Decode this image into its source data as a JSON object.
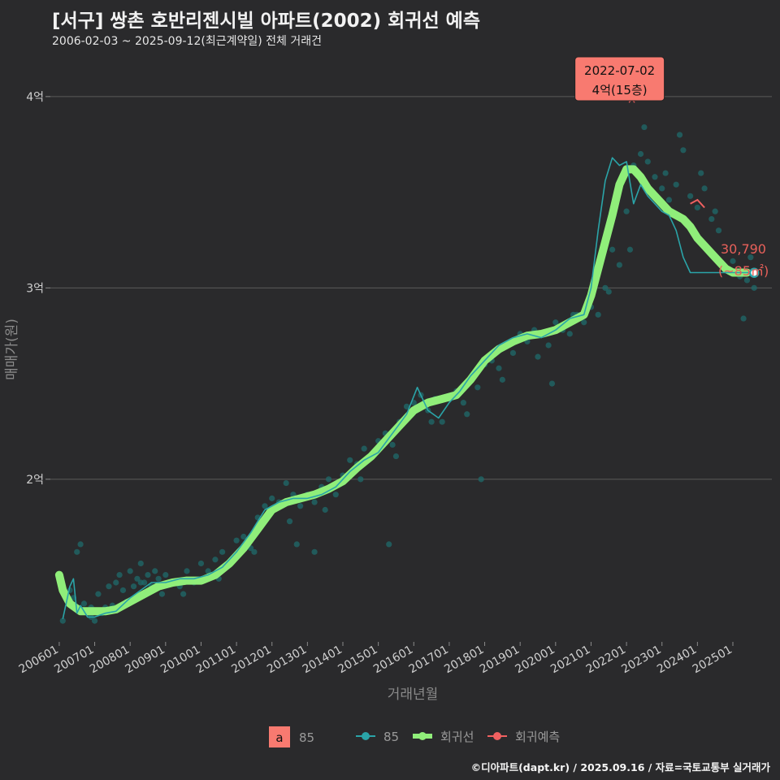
{
  "header": {
    "title": "[서구] 쌍촌 호반리젠시빌 아파트(2002) 회귀선 예측",
    "subtitle": "2006-02-03 ~ 2025-09-12(최근계약일) 전체 거래건"
  },
  "caption": "©디아파트(dapt.kr) / 2025.09.16 / 자료=국토교통부 실거래가",
  "colors": {
    "background": "#2a2a2c",
    "grid": "#5a5a5a",
    "scatter": "#1f6b6b",
    "series_line": "#2aa4a8",
    "regression": "#90ee7a",
    "forecast": "#f06060",
    "annotation_box": "#f87a70"
  },
  "chart_data": {
    "type": "scatter",
    "xlabel": "거래년월",
    "ylabel": "매매가(원)",
    "xlim": [
      2005.75,
      2026.1
    ],
    "ylim": [
      1.15,
      4.25
    ],
    "y_ticks": [
      {
        "value": 2,
        "label": "2억"
      },
      {
        "value": 3,
        "label": "3억"
      },
      {
        "value": 4,
        "label": "4억"
      }
    ],
    "x_ticks": [
      {
        "value": 2006.0,
        "label": "200601"
      },
      {
        "value": 2007.0,
        "label": "200701"
      },
      {
        "value": 2008.0,
        "label": "200801"
      },
      {
        "value": 2009.0,
        "label": "200901"
      },
      {
        "value": 2010.0,
        "label": "201001"
      },
      {
        "value": 2011.0,
        "label": "201101"
      },
      {
        "value": 2012.0,
        "label": "201201"
      },
      {
        "value": 2013.0,
        "label": "201301"
      },
      {
        "value": 2014.0,
        "label": "201401"
      },
      {
        "value": 2015.0,
        "label": "201501"
      },
      {
        "value": 2016.0,
        "label": "201601"
      },
      {
        "value": 2017.0,
        "label": "201701"
      },
      {
        "value": 2018.0,
        "label": "201801"
      },
      {
        "value": 2019.0,
        "label": "201901"
      },
      {
        "value": 2020.0,
        "label": "202001"
      },
      {
        "value": 2021.0,
        "label": "202101"
      },
      {
        "value": 2022.0,
        "label": "202201"
      },
      {
        "value": 2023.0,
        "label": "202301"
      },
      {
        "value": 2024.0,
        "label": "202401"
      },
      {
        "value": 2025.0,
        "label": "202501"
      }
    ],
    "series": [
      {
        "name": "85",
        "type": "scatter",
        "x": [
          2006.1,
          2006.3,
          2006.5,
          2006.6,
          2006.7,
          2006.8,
          2006.9,
          2007.0,
          2007.1,
          2007.2,
          2007.3,
          2007.4,
          2007.5,
          2007.6,
          2007.7,
          2007.8,
          2007.9,
          2008.0,
          2008.1,
          2008.2,
          2008.3,
          2008.4,
          2008.5,
          2008.6,
          2008.7,
          2008.8,
          2008.9,
          2009.0,
          2009.2,
          2009.4,
          2009.6,
          2009.8,
          2010.0,
          2010.2,
          2010.4,
          2010.6,
          2010.8,
          2011.0,
          2011.2,
          2011.4,
          2011.6,
          2011.8,
          2012.0,
          2012.2,
          2012.4,
          2012.6,
          2012.8,
          2013.0,
          2013.2,
          2013.4,
          2013.6,
          2013.8,
          2014.0,
          2014.2,
          2014.4,
          2014.6,
          2014.8,
          2015.0,
          2015.2,
          2015.4,
          2015.6,
          2015.8,
          2016.0,
          2016.2,
          2016.4,
          2016.6,
          2016.8,
          2017.0,
          2017.2,
          2017.4,
          2017.6,
          2017.8,
          2018.0,
          2018.2,
          2018.4,
          2018.6,
          2018.8,
          2019.0,
          2019.2,
          2019.4,
          2019.6,
          2019.8,
          2020.0,
          2020.2,
          2020.4,
          2020.6,
          2020.8,
          2021.0,
          2021.2,
          2021.4,
          2021.6,
          2021.8,
          2022.0,
          2022.2,
          2022.4,
          2022.6,
          2022.8,
          2023.0,
          2023.2,
          2023.4,
          2023.6,
          2023.8,
          2024.0,
          2024.2,
          2024.4,
          2024.6,
          2024.8,
          2025.0,
          2025.2,
          2025.4,
          2025.6,
          2006.4,
          2006.9,
          2007.3,
          2008.3,
          2009.5,
          2010.5,
          2011.5,
          2012.5,
          2013.5,
          2014.5,
          2015.5,
          2016.5,
          2017.5,
          2018.5,
          2019.5,
          2020.5,
          2021.5,
          2022.5,
          2023.5,
          2024.5,
          2025.5,
          2012.7,
          2013.2,
          2015.3,
          2017.9,
          2019.9,
          2022.1,
          2023.1,
          2024.1,
          2025.3
        ],
        "values": [
          1.26,
          1.42,
          1.62,
          1.66,
          1.35,
          1.3,
          1.33,
          1.26,
          1.4,
          1.3,
          1.33,
          1.44,
          1.34,
          1.46,
          1.5,
          1.42,
          1.36,
          1.52,
          1.44,
          1.48,
          1.56,
          1.46,
          1.5,
          1.44,
          1.52,
          1.48,
          1.4,
          1.5,
          1.46,
          1.44,
          1.52,
          1.46,
          1.56,
          1.52,
          1.58,
          1.62,
          1.56,
          1.68,
          1.7,
          1.64,
          1.8,
          1.86,
          1.9,
          1.88,
          1.98,
          1.92,
          1.86,
          1.92,
          1.88,
          1.96,
          2.0,
          1.92,
          2.02,
          2.1,
          2.08,
          2.16,
          2.12,
          2.2,
          2.24,
          2.18,
          2.3,
          2.38,
          2.4,
          2.44,
          2.36,
          2.42,
          2.3,
          2.42,
          2.46,
          2.4,
          2.52,
          2.48,
          2.6,
          2.62,
          2.58,
          2.7,
          2.66,
          2.76,
          2.72,
          2.78,
          2.76,
          2.7,
          2.82,
          2.78,
          2.76,
          2.86,
          2.82,
          2.9,
          2.86,
          3.0,
          3.2,
          3.12,
          3.4,
          3.64,
          3.7,
          3.66,
          3.58,
          3.52,
          3.46,
          3.54,
          3.72,
          3.48,
          3.42,
          3.52,
          3.36,
          3.3,
          3.1,
          3.14,
          3.06,
          3.04,
          3.0,
          1.38,
          1.28,
          1.32,
          1.46,
          1.4,
          1.48,
          1.62,
          1.78,
          1.84,
          2.0,
          2.12,
          2.3,
          2.34,
          2.52,
          2.64,
          2.86,
          2.98,
          3.84,
          3.8,
          3.4,
          3.16,
          1.66,
          1.62,
          1.66,
          2.0,
          2.5,
          3.2,
          3.6,
          3.6,
          2.84
        ]
      },
      {
        "name": "85",
        "type": "line",
        "x": [
          2006.1,
          2006.3,
          2006.4,
          2006.5,
          2006.6,
          2006.8,
          2007.0,
          2007.3,
          2007.6,
          2008.0,
          2008.3,
          2008.6,
          2009.0,
          2009.4,
          2009.8,
          2010.2,
          2010.6,
          2011.0,
          2011.4,
          2011.8,
          2012.2,
          2012.6,
          2013.0,
          2013.4,
          2013.8,
          2014.2,
          2014.6,
          2015.0,
          2015.4,
          2015.8,
          2016.1,
          2016.4,
          2016.7,
          2017.0,
          2017.3,
          2017.6,
          2018.0,
          2018.4,
          2018.8,
          2019.2,
          2019.6,
          2020.0,
          2020.4,
          2020.8,
          2021.0,
          2021.2,
          2021.4,
          2021.6,
          2021.8,
          2022.0,
          2022.2,
          2022.4,
          2022.6,
          2022.8,
          2023.0,
          2023.2,
          2023.4,
          2023.6,
          2023.8,
          2024.0,
          2024.2,
          2024.4,
          2024.6,
          2024.8,
          2025.0,
          2025.2,
          2025.4,
          2025.6
        ],
        "values": [
          1.27,
          1.44,
          1.48,
          1.3,
          1.34,
          1.28,
          1.28,
          1.3,
          1.31,
          1.38,
          1.42,
          1.46,
          1.46,
          1.48,
          1.48,
          1.5,
          1.54,
          1.62,
          1.72,
          1.84,
          1.88,
          1.9,
          1.9,
          1.92,
          1.96,
          2.04,
          2.1,
          2.14,
          2.24,
          2.34,
          2.48,
          2.36,
          2.32,
          2.4,
          2.46,
          2.54,
          2.62,
          2.7,
          2.74,
          2.76,
          2.74,
          2.78,
          2.84,
          2.86,
          3.0,
          3.3,
          3.56,
          3.68,
          3.64,
          3.66,
          3.44,
          3.54,
          3.48,
          3.44,
          3.4,
          3.38,
          3.3,
          3.16,
          3.08,
          3.08,
          3.08,
          3.08,
          3.08,
          3.08,
          3.08,
          3.08,
          3.08,
          3.08
        ]
      },
      {
        "name": "회귀선",
        "type": "line",
        "x": [
          2006.0,
          2006.1,
          2006.3,
          2006.6,
          2007.0,
          2007.3,
          2007.6,
          2008.0,
          2008.4,
          2008.8,
          2009.2,
          2009.6,
          2010.0,
          2010.4,
          2010.8,
          2011.2,
          2011.6,
          2012.0,
          2012.4,
          2012.8,
          2013.2,
          2013.6,
          2014.0,
          2014.4,
          2014.8,
          2015.2,
          2015.6,
          2016.0,
          2016.4,
          2016.8,
          2017.2,
          2017.6,
          2018.0,
          2018.4,
          2018.8,
          2019.2,
          2019.6,
          2020.0,
          2020.4,
          2020.8,
          2021.0,
          2021.2,
          2021.4,
          2021.6,
          2021.8,
          2022.0,
          2022.2,
          2022.4,
          2022.6,
          2022.8,
          2023.0,
          2023.2,
          2023.4,
          2023.6,
          2023.8,
          2024.0,
          2024.2,
          2024.4,
          2024.6,
          2024.8,
          2025.0,
          2025.2,
          2025.4
        ],
        "values": [
          1.5,
          1.42,
          1.35,
          1.31,
          1.31,
          1.31,
          1.32,
          1.36,
          1.4,
          1.44,
          1.46,
          1.47,
          1.47,
          1.5,
          1.56,
          1.64,
          1.74,
          1.84,
          1.88,
          1.9,
          1.92,
          1.95,
          1.99,
          2.06,
          2.12,
          2.2,
          2.28,
          2.36,
          2.4,
          2.42,
          2.44,
          2.52,
          2.62,
          2.68,
          2.72,
          2.75,
          2.76,
          2.78,
          2.82,
          2.86,
          2.96,
          3.1,
          3.24,
          3.38,
          3.54,
          3.62,
          3.62,
          3.58,
          3.52,
          3.48,
          3.44,
          3.4,
          3.38,
          3.36,
          3.32,
          3.26,
          3.22,
          3.18,
          3.14,
          3.1,
          3.08,
          3.08,
          3.08
        ]
      },
      {
        "name": "회귀예측",
        "type": "line",
        "x": [
          2023.8,
          2024.0,
          2024.2
        ],
        "values": [
          3.44,
          3.46,
          3.42
        ]
      }
    ],
    "highlight_point": {
      "x": 2022.15,
      "value": 4.0
    },
    "annotation": {
      "date": "2022-07-02",
      "label": "4억(15층)"
    },
    "last_point": {
      "x": 2025.6,
      "value": 3.079,
      "price": "30,790",
      "area": "(~85㎡)"
    },
    "legend": {
      "box_letter": "a",
      "box_label": "85",
      "items": [
        "85",
        "회귀선",
        "회귀예측"
      ]
    }
  }
}
